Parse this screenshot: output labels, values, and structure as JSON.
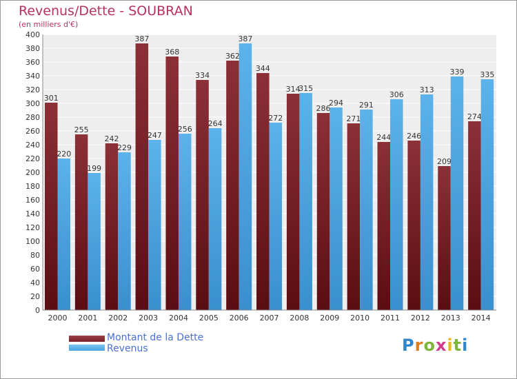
{
  "colors": {
    "dette": "#7a1f26",
    "revenus": "#4aa3e0",
    "title": "#b8315e",
    "legend_text": "#4b6fd6",
    "plot_bg": "#eeeeee",
    "grid": "#ffffff"
  },
  "logo": {
    "letters": [
      "P",
      "r",
      "o",
      "x",
      "i",
      "t",
      "i"
    ],
    "colors": [
      "#2f86c9",
      "#e07d1e",
      "#7cb63a",
      "#d23b8e",
      "#e9b81c",
      "#7cb63a",
      "#2f86c9"
    ]
  },
  "chart_data": {
    "type": "bar",
    "title": "Revenus/Dette - SOUBRAN",
    "subtitle": "(en milliers d'€)",
    "categories": [
      "2000",
      "2001",
      "2002",
      "2003",
      "2004",
      "2005",
      "2006",
      "2007",
      "2008",
      "2009",
      "2010",
      "2011",
      "2012",
      "2013",
      "2014"
    ],
    "series": [
      {
        "name": "Montant de la Dette",
        "values": [
          301,
          255,
          242,
          387,
          368,
          334,
          362,
          344,
          314,
          286,
          271,
          244,
          246,
          209,
          274
        ]
      },
      {
        "name": "Revenus",
        "values": [
          220,
          199,
          229,
          247,
          256,
          264,
          387,
          272,
          315,
          294,
          291,
          306,
          313,
          339,
          335
        ]
      }
    ],
    "ylim": [
      0,
      400
    ],
    "y_ticks": [
      0,
      20,
      40,
      60,
      80,
      100,
      120,
      140,
      160,
      180,
      200,
      220,
      240,
      260,
      280,
      300,
      320,
      340,
      360,
      380,
      400
    ],
    "grid": true,
    "legend_position": "bottom-left"
  }
}
